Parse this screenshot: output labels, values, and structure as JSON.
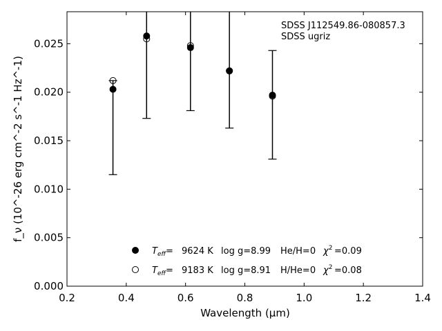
{
  "chart_data": {
    "type": "scatter",
    "annotation_lines": [
      "SDSS J112549.86-080857.3",
      "SDSS ugriz"
    ],
    "xlabel": "Wavelength (μm)",
    "ylabel": "f_ν (10^-26 erg cm^-2 s^-1 Hz^-1)",
    "xlim": [
      0.2,
      1.4
    ],
    "ylim": [
      0.0,
      0.0283
    ],
    "xticks": [
      0.2,
      0.4,
      0.6,
      0.8,
      1.0,
      1.2,
      1.4
    ],
    "xtick_labels": [
      "0.2",
      "0.4",
      "0.6",
      "0.8",
      "1.0",
      "1.2",
      "1.4"
    ],
    "yticks": [
      0.0,
      0.005,
      0.01,
      0.015,
      0.02,
      0.025
    ],
    "ytick_labels": [
      "0.000",
      "0.005",
      "0.010",
      "0.015",
      "0.020",
      "0.025"
    ],
    "grid": false,
    "legend_position": "bottom-center",
    "observed": {
      "x": [
        0.3551,
        0.4686,
        0.6166,
        0.748,
        0.8932
      ],
      "y": [
        0.0203,
        0.0257,
        0.0246,
        0.0222,
        0.0197
      ],
      "err_low": [
        0.0115,
        0.0173,
        0.0181,
        0.0163,
        0.0131
      ],
      "err_high": [
        0.0212,
        0.03,
        0.03,
        0.03,
        0.0243
      ]
    },
    "series": [
      {
        "marker": "filled",
        "teff": "9624 K",
        "logg": "log g=8.99",
        "composition": "He/H=0",
        "chi2": "=0.09",
        "x": [
          0.3551,
          0.4686,
          0.6166,
          0.748,
          0.8932
        ],
        "y": [
          0.0203,
          0.0258,
          0.0246,
          0.0222,
          0.0197
        ]
      },
      {
        "marker": "open",
        "teff": "9183 K",
        "logg": "log g=8.91",
        "composition": "H/He=0",
        "chi2": "=0.08",
        "x": [
          0.3551,
          0.4686,
          0.6166,
          0.748,
          0.8932
        ],
        "y": [
          0.0212,
          0.0255,
          0.0248,
          0.0222,
          0.0196
        ]
      }
    ],
    "colors": {
      "marker": "#000000",
      "axes": "#000000"
    }
  }
}
